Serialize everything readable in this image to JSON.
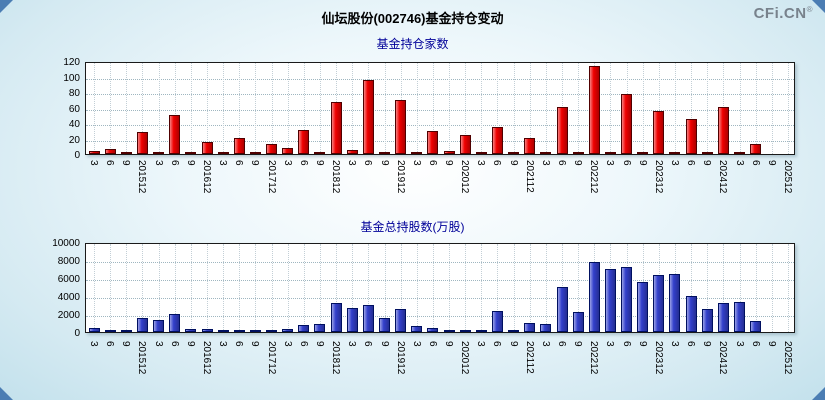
{
  "header": {
    "title": "仙坛股份(002746)基金持仓变动",
    "logo_text": "CFi.CN",
    "logo_reg": "®"
  },
  "chart_data": [
    {
      "type": "bar",
      "title": "基金持仓家数",
      "title_color": "#000099",
      "bar_color": "#f00000",
      "bar_border": "#500000",
      "xlabel": "",
      "ylabel": "",
      "grid": true,
      "ylim": [
        0,
        120
      ],
      "yticks": [
        0,
        20,
        40,
        60,
        80,
        100,
        120
      ],
      "categories": [
        "3",
        "6",
        "9",
        "201512",
        "3",
        "6",
        "9",
        "201612",
        "3",
        "6",
        "9",
        "201712",
        "3",
        "6",
        "9",
        "201812",
        "3",
        "6",
        "9",
        "201912",
        "3",
        "6",
        "9",
        "202012",
        "3",
        "6",
        "9",
        "202112",
        "3",
        "6",
        "9",
        "202212",
        "3",
        "6",
        "9",
        "202312",
        "3",
        "6",
        "9",
        "202412",
        "3",
        "6",
        "9",
        "202512"
      ],
      "values": [
        4,
        7,
        3,
        28,
        1,
        50,
        2,
        15,
        1,
        21,
        1,
        13,
        8,
        31,
        2,
        67,
        5,
        95,
        3,
        70,
        2,
        30,
        4,
        25,
        1,
        35,
        2,
        20,
        1,
        60,
        2,
        113,
        2,
        77,
        2,
        55,
        1,
        45,
        2,
        60,
        1,
        13,
        0,
        0
      ]
    },
    {
      "type": "bar",
      "title": "基金总持股数(万股)",
      "title_color": "#000099",
      "bar_color": "#3340cc",
      "bar_border": "#001060",
      "xlabel": "",
      "ylabel": "",
      "grid": true,
      "ylim": [
        0,
        10000
      ],
      "yticks": [
        0,
        2000,
        4000,
        6000,
        8000,
        10000
      ],
      "categories": [
        "3",
        "6",
        "9",
        "201512",
        "3",
        "6",
        "9",
        "201612",
        "3",
        "6",
        "9",
        "201712",
        "3",
        "6",
        "9",
        "201812",
        "3",
        "6",
        "9",
        "201912",
        "3",
        "6",
        "9",
        "202012",
        "3",
        "6",
        "9",
        "202112",
        "3",
        "6",
        "9",
        "202212",
        "3",
        "6",
        "9",
        "202312",
        "3",
        "6",
        "9",
        "202412",
        "3",
        "6",
        "9",
        "202512"
      ],
      "values": [
        400,
        250,
        80,
        1500,
        1300,
        2000,
        300,
        350,
        80,
        60,
        70,
        100,
        300,
        800,
        900,
        3200,
        2700,
        3000,
        1500,
        2600,
        700,
        400,
        150,
        100,
        80,
        2300,
        100,
        1000,
        900,
        5000,
        2200,
        7800,
        7000,
        7200,
        5600,
        6300,
        6400,
        4000,
        2500,
        3200,
        3300,
        1200,
        0,
        0
      ]
    }
  ]
}
